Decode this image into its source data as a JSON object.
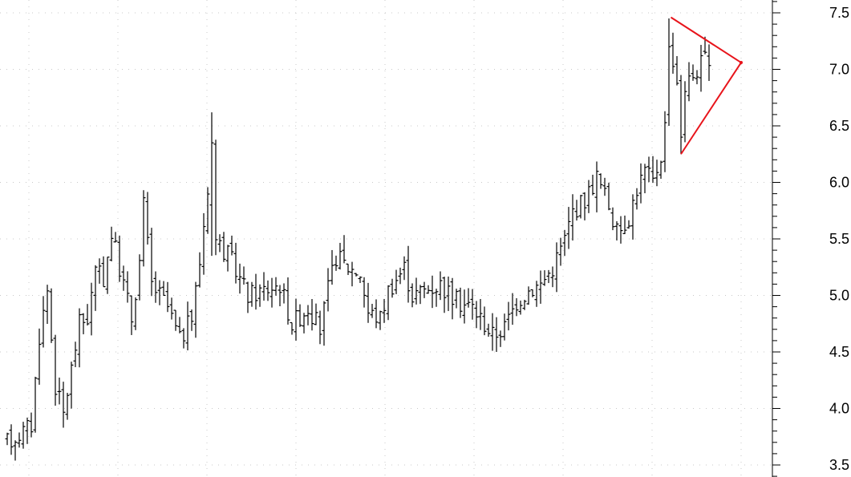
{
  "chart_data": {
    "type": "ohlc",
    "ylim": [
      3.45,
      7.55
    ],
    "y_ticks": [
      "3.5",
      "4.0",
      "4.5",
      "5.0",
      "5.5",
      "6.0",
      "6.5",
      "7.0",
      "7.5"
    ],
    "y_tick_values": [
      3.5,
      4.0,
      4.5,
      5.0,
      5.5,
      6.0,
      6.5,
      7.0,
      7.5
    ],
    "y_minor_step": 0.1,
    "grid": true,
    "bar_count": 180,
    "price_path_keypoints": [
      [
        0,
        3.7
      ],
      [
        6,
        3.85
      ],
      [
        8,
        4.65
      ],
      [
        10,
        5.05
      ],
      [
        12,
        4.2
      ],
      [
        14,
        3.95
      ],
      [
        16,
        4.35
      ],
      [
        18,
        4.75
      ],
      [
        20,
        4.8
      ],
      [
        22,
        5.2
      ],
      [
        24,
        5.15
      ],
      [
        26,
        5.55
      ],
      [
        29,
        5.1
      ],
      [
        31,
        4.8
      ],
      [
        33,
        5.3
      ],
      [
        34,
        5.8
      ],
      [
        36,
        5.1
      ],
      [
        40,
        4.9
      ],
      [
        43,
        4.6
      ],
      [
        46,
        4.8
      ],
      [
        48,
        5.3
      ],
      [
        51,
        6.3
      ],
      [
        52,
        5.5
      ],
      [
        56,
        5.3
      ],
      [
        60,
        5.0
      ],
      [
        64,
        5.05
      ],
      [
        68,
        5.1
      ],
      [
        71,
        4.75
      ],
      [
        75,
        4.9
      ],
      [
        78,
        4.7
      ],
      [
        80,
        5.05
      ],
      [
        82,
        5.35
      ],
      [
        85,
        5.25
      ],
      [
        88,
        5.2
      ],
      [
        90,
        4.85
      ],
      [
        93,
        4.8
      ],
      [
        95,
        5.05
      ],
      [
        99,
        5.25
      ],
      [
        101,
        5.0
      ],
      [
        104,
        5.05
      ],
      [
        108,
        5.1
      ],
      [
        112,
        4.95
      ],
      [
        116,
        4.9
      ],
      [
        119,
        4.75
      ],
      [
        121,
        4.65
      ],
      [
        124,
        4.72
      ],
      [
        127,
        4.95
      ],
      [
        130,
        5.05
      ],
      [
        133,
        5.1
      ],
      [
        136,
        5.25
      ],
      [
        139,
        5.5
      ],
      [
        141,
        5.75
      ],
      [
        144,
        5.85
      ],
      [
        147,
        6.05
      ],
      [
        150,
        5.8
      ],
      [
        152,
        5.55
      ],
      [
        155,
        5.7
      ],
      [
        157,
        5.95
      ],
      [
        159,
        6.1
      ],
      [
        161,
        6.0
      ],
      [
        163,
        6.25
      ],
      [
        165,
        6.75
      ],
      [
        166,
        7.1
      ],
      [
        167,
        6.9
      ],
      [
        168,
        6.55
      ],
      [
        169,
        6.85
      ],
      [
        171,
        6.95
      ],
      [
        172,
        7.0
      ],
      [
        174,
        7.1
      ],
      [
        175,
        6.95
      ]
    ],
    "price_path_overrides": [
      [
        51,
        5.8,
        6.62,
        5.35,
        6.35
      ],
      [
        165,
        6.6,
        7.45,
        6.5,
        7.2
      ],
      [
        168,
        6.9,
        6.95,
        6.25,
        6.4
      ]
    ],
    "triangle_pattern": {
      "color": "#e8141b",
      "points": [
        [
          165.5,
          7.46
        ],
        [
          183,
          7.06
        ],
        [
          168.0,
          6.25
        ]
      ],
      "segments": [
        [
          [
            165.5,
            7.46
          ],
          [
            183,
            7.06
          ]
        ],
        [
          [
            168.0,
            6.25
          ],
          [
            183,
            7.06
          ]
        ],
        [
          [
            165.5,
            7.46
          ],
          [
            175.0,
            7.24
          ]
        ],
        [
          [
            168.0,
            6.25
          ],
          [
            175.0,
            6.62
          ]
        ]
      ]
    }
  }
}
